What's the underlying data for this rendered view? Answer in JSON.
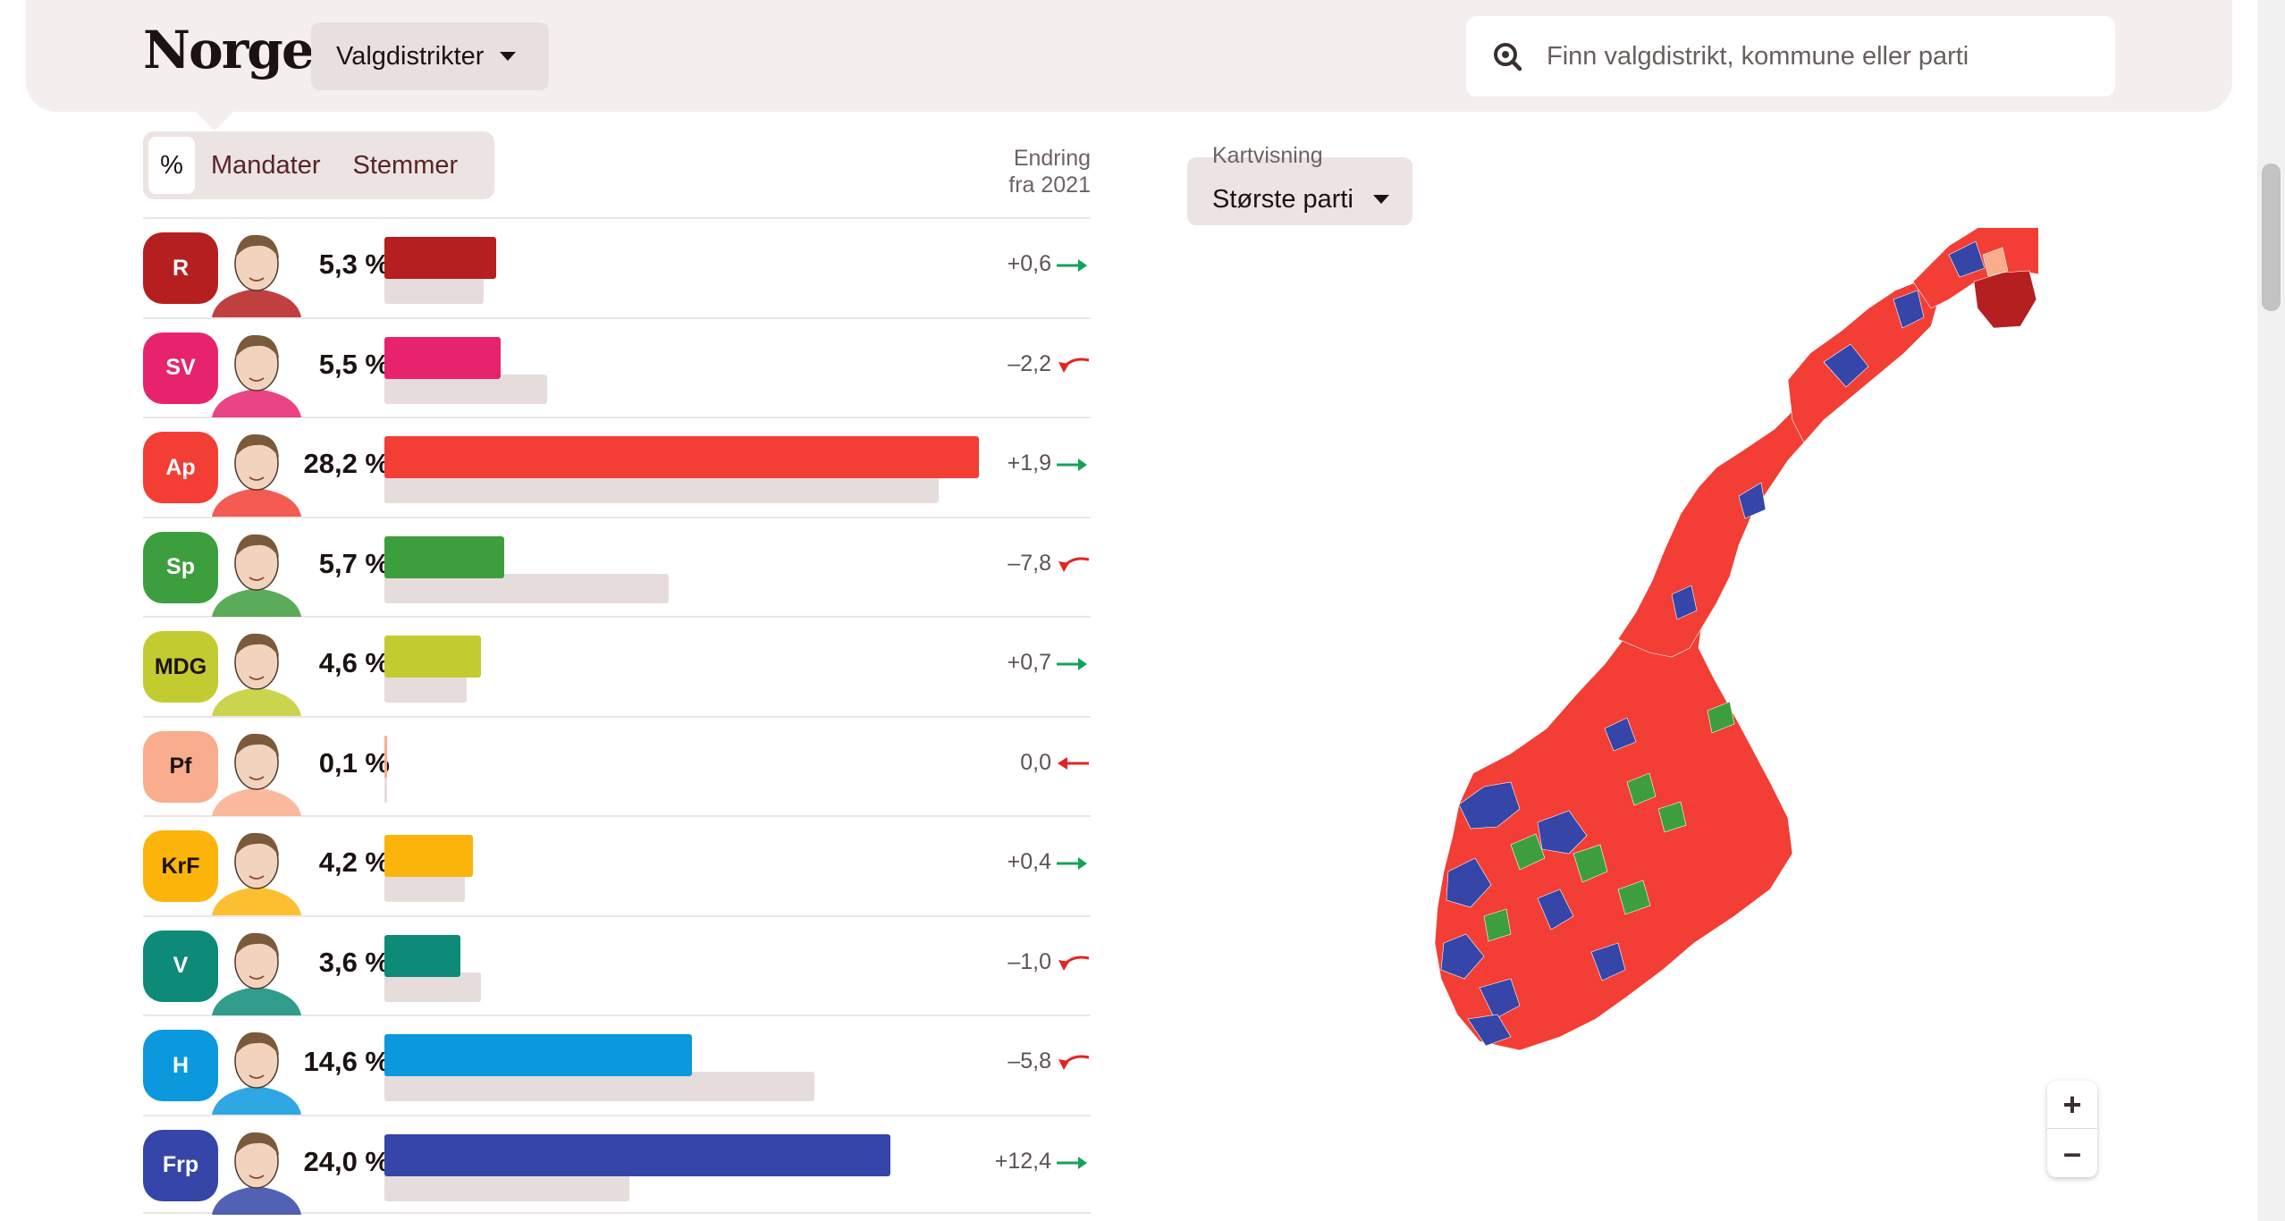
{
  "header": {
    "title": "Norge",
    "region_select": "Valgdistrikter",
    "search_placeholder": "Finn valgdistrikt, kommune eller parti"
  },
  "view_toggle": {
    "options": [
      "%",
      "Mandater",
      "Stemmer"
    ],
    "selected": "%"
  },
  "change_header": {
    "line1": "Endring",
    "line2": "fra 2021"
  },
  "parties": [
    {
      "code": "R",
      "percent": 5.3,
      "percent_label": "5,3 %",
      "previous_percent": 4.7,
      "change_label": "+0,6",
      "trend": "up",
      "color": "#b51f1f",
      "badge_text_color": "#ffffff"
    },
    {
      "code": "SV",
      "percent": 5.5,
      "percent_label": "5,5 %",
      "previous_percent": 7.7,
      "change_label": "–2,2",
      "trend": "down",
      "color": "#e8236e",
      "badge_text_color": "#ffffff"
    },
    {
      "code": "Ap",
      "percent": 28.2,
      "percent_label": "28,2 %",
      "previous_percent": 26.3,
      "change_label": "+1,9",
      "trend": "up",
      "color": "#f23e34",
      "badge_text_color": "#ffffff"
    },
    {
      "code": "Sp",
      "percent": 5.7,
      "percent_label": "5,7 %",
      "previous_percent": 13.5,
      "change_label": "–7,8",
      "trend": "down",
      "color": "#3d9e3d",
      "badge_text_color": "#ffffff"
    },
    {
      "code": "MDG",
      "percent": 4.6,
      "percent_label": "4,6 %",
      "previous_percent": 3.9,
      "change_label": "+0,7",
      "trend": "up",
      "color": "#c2cc30",
      "badge_text_color": "#1c1212"
    },
    {
      "code": "Pf",
      "percent": 0.1,
      "percent_label": "0,1 %",
      "previous_percent": 0.1,
      "change_label": "0,0",
      "trend": "flat",
      "color": "#f9ad8c",
      "badge_text_color": "#1c1212"
    },
    {
      "code": "KrF",
      "percent": 4.2,
      "percent_label": "4,2 %",
      "previous_percent": 3.8,
      "change_label": "+0,4",
      "trend": "up",
      "color": "#fbb40a",
      "badge_text_color": "#1c1212"
    },
    {
      "code": "V",
      "percent": 3.6,
      "percent_label": "3,6 %",
      "previous_percent": 4.6,
      "change_label": "–1,0",
      "trend": "down",
      "color": "#0e8b78",
      "badge_text_color": "#ffffff"
    },
    {
      "code": "H",
      "percent": 14.6,
      "percent_label": "14,6 %",
      "previous_percent": 20.4,
      "change_label": "–5,8",
      "trend": "down",
      "color": "#0b98dd",
      "badge_text_color": "#ffffff"
    },
    {
      "code": "Frp",
      "percent": 24.0,
      "percent_label": "24,0 %",
      "previous_percent": 11.6,
      "change_label": "+12,4",
      "trend": "up",
      "color": "#3545a8",
      "badge_text_color": "#ffffff"
    }
  ],
  "bar_scale_max_percent": 28.2,
  "prev_bar_color": "#e7dcdc",
  "up_arrow_color": "#13a35a",
  "down_arrow_color": "#e42323",
  "map_panel": {
    "label": "Kartvisning",
    "selected_view": "Største parti",
    "zoom_in": "+",
    "zoom_out": "–"
  }
}
